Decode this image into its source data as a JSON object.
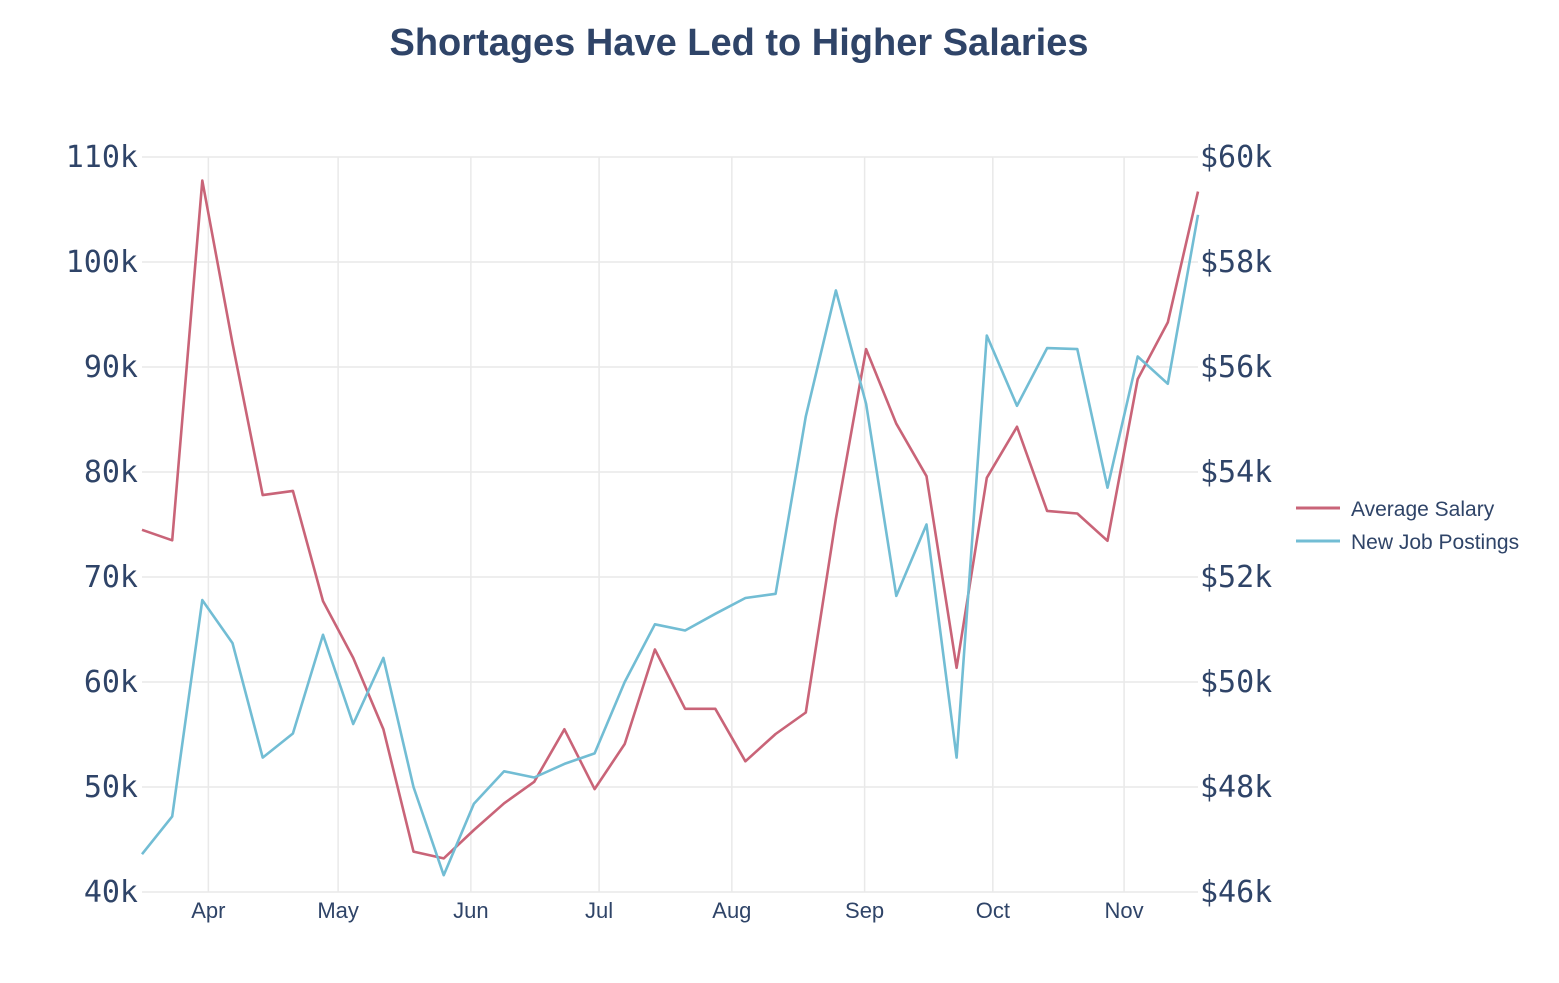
{
  "chart_data": {
    "type": "line",
    "title": "Shortages Have Led to Higher Salaries",
    "x_points": 36,
    "month_ticks": [
      {
        "label": "Apr",
        "x": 2.2
      },
      {
        "label": "May",
        "x": 6.5
      },
      {
        "label": "Jun",
        "x": 10.9
      },
      {
        "label": "Jul",
        "x": 15.15
      },
      {
        "label": "Aug",
        "x": 19.55
      },
      {
        "label": "Sep",
        "x": 23.95
      },
      {
        "label": "Oct",
        "x": 28.2
      },
      {
        "label": "Nov",
        "x": 32.55
      }
    ],
    "y_left": {
      "ylim": [
        40000,
        110000
      ],
      "ticks": [
        40000,
        50000,
        60000,
        70000,
        80000,
        90000,
        100000,
        110000
      ],
      "tick_labels": [
        "40k",
        "50k",
        "60k",
        "70k",
        "80k",
        "90k",
        "100k",
        "110k"
      ]
    },
    "y_right": {
      "ylim": [
        46000,
        60000
      ],
      "ticks": [
        46000,
        48000,
        50000,
        52000,
        54000,
        56000,
        58000,
        60000
      ],
      "tick_labels": [
        "$46k",
        "$48k",
        "$50k",
        "$52k",
        "$54k",
        "$56k",
        "$58k",
        "$60k"
      ]
    },
    "series": [
      {
        "name": "Average Salary",
        "axis": "right",
        "color": "#c96478",
        "values": [
          52900,
          52700,
          59550,
          56450,
          53560,
          53640,
          51540,
          50460,
          49100,
          46770,
          46640,
          47180,
          47690,
          48100,
          49100,
          47960,
          48820,
          50620,
          49490,
          49490,
          48490,
          49010,
          49420,
          53110,
          56340,
          54920,
          53920,
          50270,
          53890,
          54860,
          53260,
          53210,
          52690,
          55770,
          56850,
          59340
        ]
      },
      {
        "name": "New Job Postings",
        "axis": "left",
        "color": "#72bdd4",
        "values": [
          43600,
          47200,
          67800,
          63700,
          52800,
          55100,
          64500,
          56000,
          62300,
          50000,
          41600,
          48400,
          51500,
          50900,
          52200,
          53200,
          60000,
          65500,
          64900,
          66500,
          68000,
          68400,
          85300,
          97300,
          86500,
          68200,
          75000,
          52800,
          93000,
          86300,
          91800,
          91700,
          78500,
          91000,
          88400,
          104500
        ]
      }
    ],
    "legend": {
      "placement": "right",
      "entries": [
        "Average Salary",
        "New Job Postings"
      ]
    }
  }
}
